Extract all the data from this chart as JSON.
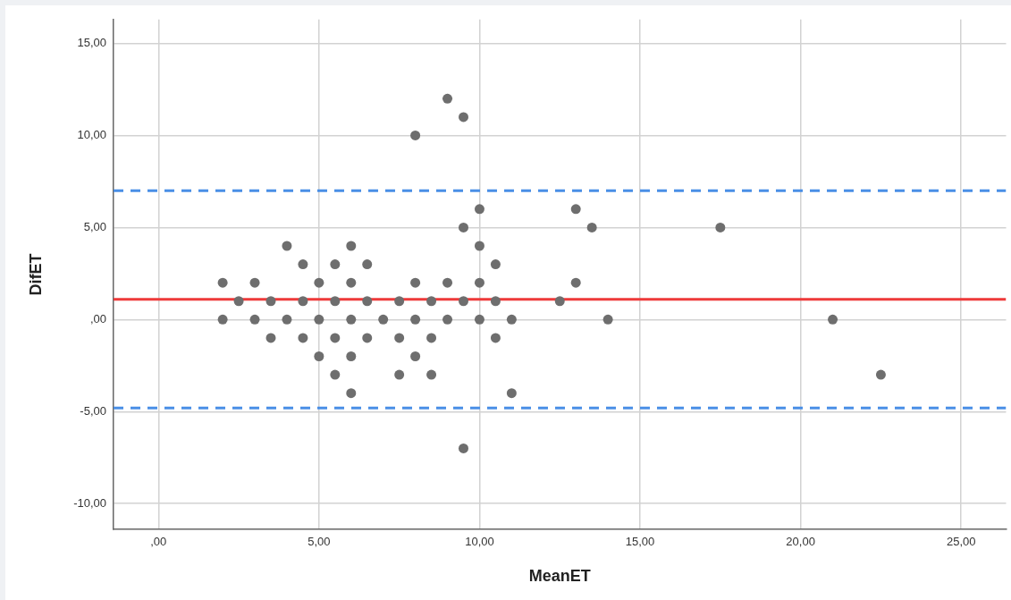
{
  "chart_data": {
    "type": "scatter",
    "xlabel": "MeanET",
    "ylabel": "DifET",
    "x": [
      2,
      2,
      2.5,
      3,
      3,
      3.5,
      3.5,
      4,
      4,
      4.5,
      4.5,
      4.5,
      5,
      5,
      5,
      5.5,
      5.5,
      5.5,
      5.5,
      6,
      6,
      6,
      6,
      6,
      6.5,
      6.5,
      6.5,
      7,
      7.5,
      7.5,
      7.5,
      8,
      8,
      8,
      8,
      8.5,
      8.5,
      8.5,
      9,
      9,
      9,
      9.5,
      9.5,
      9.5,
      9.5,
      10,
      10,
      10,
      10,
      10.5,
      10.5,
      10.5,
      11,
      11,
      12.5,
      13,
      13,
      13.5,
      14,
      17.5,
      21,
      22.5
    ],
    "values": [
      2,
      0,
      1,
      2,
      0,
      1,
      -1,
      4,
      0,
      3,
      1,
      -1,
      2,
      0,
      -2,
      3,
      1,
      -1,
      -3,
      4,
      2,
      0,
      -2,
      -4,
      3,
      1,
      -1,
      0,
      1,
      -1,
      -3,
      10,
      2,
      0,
      -2,
      1,
      -1,
      -3,
      12,
      2,
      0,
      11,
      5,
      1,
      -7,
      6,
      4,
      2,
      0,
      3,
      1,
      -1,
      0,
      -4,
      1,
      6,
      2,
      5,
      0,
      5,
      0,
      -3
    ],
    "color": "#6e6e6e",
    "marker": "circle",
    "xlim": [
      -1.4,
      26.4
    ],
    "ylim": [
      -11.4,
      16.3
    ],
    "xticks": [
      {
        "value": 0,
        "label": ",00"
      },
      {
        "value": 5,
        "label": "5,00"
      },
      {
        "value": 10,
        "label": "10,00"
      },
      {
        "value": 15,
        "label": "15,00"
      },
      {
        "value": 20,
        "label": "20,00"
      },
      {
        "value": 25,
        "label": "25,00"
      }
    ],
    "yticks": [
      {
        "value": -10,
        "label": "-10,00"
      },
      {
        "value": -5,
        "label": "-5,00"
      },
      {
        "value": 0,
        "label": ",00"
      },
      {
        "value": 5,
        "label": "5,00"
      },
      {
        "value": 10,
        "label": "10,00"
      },
      {
        "value": 15,
        "label": "15,00"
      }
    ],
    "grid": true,
    "ref_lines": [
      {
        "axis": "y",
        "value": 1.1,
        "color": "#ee3a3a",
        "line_style": "solid"
      },
      {
        "axis": "y",
        "value": 7.0,
        "color": "#4a8fe6",
        "line_style": "dashed"
      },
      {
        "axis": "y",
        "value": -4.8,
        "color": "#4a8fe6",
        "line_style": "dashed"
      }
    ]
  }
}
